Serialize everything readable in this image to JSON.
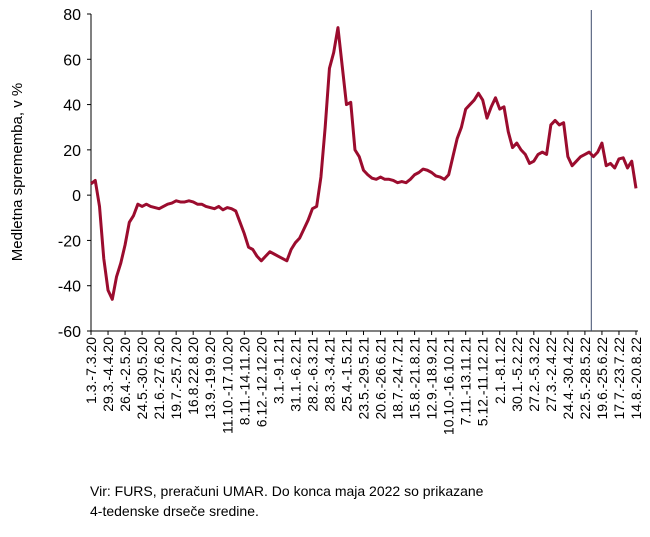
{
  "chart_data": {
    "type": "line",
    "ylabel": "Medletna sprememba, v %",
    "note": [
      "Vir: FURS, preračuni UMAR. Do konca maja 2022 so prikazane",
      "4-tedenske drseče sredine."
    ],
    "categories": [
      "1.3.-7.3.20",
      null,
      null,
      null,
      "29.3.-4.4.20",
      null,
      null,
      null,
      "26.4.-2.5.20",
      null,
      null,
      null,
      "24.5.-30.5.20",
      null,
      null,
      null,
      "21.6.-27.6.20",
      null,
      null,
      null,
      "19.7.-25.7.20",
      null,
      null,
      null,
      "16.8.22.8.20",
      null,
      null,
      null,
      "13.9.-19.9.20",
      null,
      null,
      null,
      "11.10.-17.10.20",
      null,
      null,
      null,
      "8.11.-14.11.20",
      null,
      null,
      null,
      "6.12.-12.12.20",
      null,
      null,
      null,
      "3.1.-9.1.21",
      null,
      null,
      null,
      "31.1.-6.2.21",
      null,
      null,
      null,
      "28.2.-6.3.21",
      null,
      null,
      null,
      "28.3.-3.4.21",
      null,
      null,
      null,
      "25.4.-1.5.21",
      null,
      null,
      null,
      "23.5.-29.5.21",
      null,
      null,
      null,
      "20.6.-26.6.21",
      null,
      null,
      null,
      "18.7.-24.7.21",
      null,
      null,
      null,
      "15.8.-21.8.21",
      null,
      null,
      null,
      "12.9.-18.9.21",
      null,
      null,
      null,
      "10.10.-16.10.21",
      null,
      null,
      null,
      "7.11.-13.11.21",
      null,
      null,
      null,
      "5.12.-11.12.21",
      null,
      null,
      null,
      "2.1.-8.1.22",
      null,
      null,
      null,
      "30.1.-5.2.22",
      null,
      null,
      null,
      "27.2.-5.3.22",
      null,
      null,
      null,
      "27.3.-2.4.22",
      null,
      null,
      null,
      "24.4.-30.4.22",
      null,
      null,
      null,
      "22.5.-28.5.22",
      null,
      null,
      null,
      "19.6.-25.6.22",
      null,
      null,
      null,
      "17.7.-23.7.22",
      null,
      null,
      null,
      "14.8.-20.8.22"
    ],
    "series": [
      {
        "color": "#9b0c2e",
        "values": [
          5,
          6.5,
          -5,
          -28,
          -42,
          -46,
          -36,
          -30,
          -22,
          -12,
          -9,
          -4,
          -5,
          -4,
          -5,
          -5.5,
          -6,
          -5,
          -4,
          -3.5,
          -2.5,
          -3,
          -3,
          -2.5,
          -3,
          -4,
          -4,
          -5,
          -5.5,
          -6,
          -5,
          -6.5,
          -5.5,
          -6,
          -7,
          -12,
          -17,
          -23,
          -24,
          -27,
          -29,
          -27,
          -25,
          -26,
          -27,
          -28,
          -29,
          -24,
          -21,
          -19,
          -15,
          -11,
          -6,
          -5,
          8,
          30,
          56,
          63,
          74,
          57,
          40,
          41,
          20,
          17,
          11,
          9,
          7.5,
          7,
          8,
          7,
          7,
          6.5,
          5.5,
          6,
          5.5,
          7,
          9,
          10,
          11.5,
          11,
          10,
          8.5,
          8,
          7,
          9,
          17,
          25,
          30,
          38,
          40,
          42,
          45,
          42,
          34,
          39,
          43,
          38,
          39,
          28,
          21,
          23,
          20,
          18,
          14,
          15,
          18,
          19,
          18,
          31,
          33,
          31,
          32,
          17,
          13,
          15,
          17,
          18,
          19,
          17,
          19,
          23,
          13,
          14,
          12,
          16,
          16.5,
          12,
          15,
          3
        ]
      }
    ],
    "ylim": [
      -60,
      80
    ],
    "yticks": [
      -60,
      -40,
      -20,
      0,
      20,
      40,
      60,
      80
    ]
  }
}
